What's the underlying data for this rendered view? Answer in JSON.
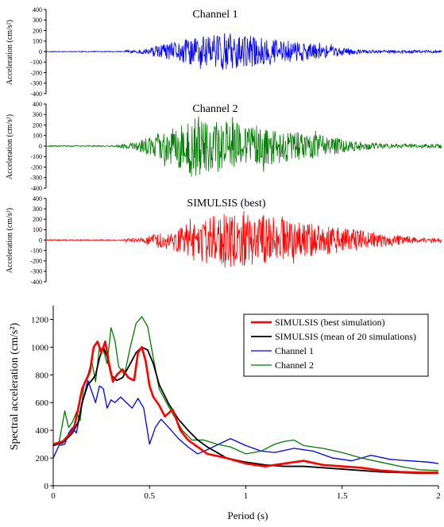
{
  "colors": {
    "channel1": "#0000ee",
    "channel2": "#007a00",
    "simulsis": "#ff0000",
    "mean": "#000000",
    "axis": "#000000"
  },
  "chart_data": [
    {
      "type": "line",
      "title": "Channel 1",
      "ylabel": "Acceleration (cm/s²)",
      "ylim": [
        -400,
        400
      ],
      "yticks": [
        "400",
        "300",
        "200",
        "100",
        "0",
        "-100",
        "-200",
        "-300",
        "-400"
      ],
      "series": [
        {
          "values": [],
          "envelope_peak": 200,
          "color_key": "channel1"
        }
      ]
    },
    {
      "type": "line",
      "title": "Channel 2",
      "ylabel": "Acceleration (cm/s²)",
      "ylim": [
        -400,
        400
      ],
      "yticks": [
        "400",
        "300",
        "200",
        "100",
        "0",
        "-100",
        "-200",
        "-300",
        "-400"
      ],
      "series": [
        {
          "values": [],
          "envelope_peak": 290,
          "color_key": "channel2"
        }
      ]
    },
    {
      "type": "line",
      "title": "SIMULSIS (best)",
      "ylabel": "Acceleration (cm/s²)",
      "ylim": [
        -400,
        400
      ],
      "yticks": [
        "400",
        "300",
        "200",
        "100",
        "0",
        "-100",
        "-200",
        "-300",
        "-400"
      ],
      "series": [
        {
          "values": [],
          "envelope_peak": 280,
          "color_key": "simulsis"
        }
      ]
    },
    {
      "type": "line",
      "xlabel": "Period (s)",
      "ylabel": "Spectral acceleration  (cm/s²)",
      "xlim": [
        0,
        2
      ],
      "ylim": [
        0,
        1300
      ],
      "xticks": [
        "0",
        "0.5",
        "1",
        "1.5",
        "2"
      ],
      "yticks": [
        "0",
        "200",
        "400",
        "600",
        "800",
        "1000",
        "1200"
      ],
      "legend_position": "top-right",
      "series": [
        {
          "name": "SIMULSIS (best simulation)",
          "color_key": "simulsis",
          "width": 2.6,
          "x": [
            0.0,
            0.05,
            0.09,
            0.11,
            0.13,
            0.15,
            0.17,
            0.19,
            0.21,
            0.23,
            0.25,
            0.27,
            0.29,
            0.31,
            0.33,
            0.36,
            0.39,
            0.42,
            0.44,
            0.46,
            0.48,
            0.5,
            0.52,
            0.55,
            0.58,
            0.62,
            0.66,
            0.7,
            0.75,
            0.8,
            0.9,
            1.0,
            1.05,
            1.1,
            1.2,
            1.3,
            1.4,
            1.5,
            1.6,
            1.7,
            1.8,
            1.9,
            2.0
          ],
          "y": [
            300,
            320,
            380,
            430,
            560,
            700,
            760,
            820,
            1000,
            1040,
            960,
            1040,
            880,
            750,
            800,
            840,
            780,
            760,
            960,
            1000,
            900,
            720,
            640,
            580,
            500,
            550,
            400,
            330,
            280,
            230,
            200,
            160,
            150,
            140,
            160,
            180,
            150,
            140,
            130,
            110,
            100,
            95,
            95
          ]
        },
        {
          "name": "SIMULSIS (mean of 20 simulations)",
          "color_key": "mean",
          "width": 1.8,
          "x": [
            0.0,
            0.05,
            0.1,
            0.13,
            0.15,
            0.18,
            0.2,
            0.22,
            0.24,
            0.26,
            0.28,
            0.3,
            0.33,
            0.36,
            0.4,
            0.43,
            0.46,
            0.49,
            0.52,
            0.55,
            0.6,
            0.65,
            0.7,
            0.75,
            0.8,
            0.9,
            1.0,
            1.1,
            1.2,
            1.3,
            1.4,
            1.5,
            1.6,
            1.7,
            1.8,
            1.9,
            2.0
          ],
          "y": [
            290,
            310,
            380,
            460,
            600,
            730,
            760,
            800,
            920,
            1000,
            930,
            800,
            760,
            780,
            880,
            960,
            1000,
            980,
            880,
            730,
            590,
            480,
            400,
            330,
            280,
            200,
            170,
            150,
            140,
            140,
            130,
            120,
            110,
            100,
            95,
            90,
            90
          ]
        },
        {
          "name": "Channel 1",
          "color_key": "channel1",
          "width": 1.3,
          "x": [
            0.0,
            0.03,
            0.06,
            0.08,
            0.1,
            0.12,
            0.14,
            0.16,
            0.18,
            0.2,
            0.22,
            0.24,
            0.26,
            0.28,
            0.3,
            0.32,
            0.35,
            0.38,
            0.41,
            0.44,
            0.47,
            0.5,
            0.53,
            0.56,
            0.6,
            0.65,
            0.7,
            0.75,
            0.8,
            0.86,
            0.92,
            1.0,
            1.08,
            1.15,
            1.25,
            1.35,
            1.45,
            1.55,
            1.65,
            1.75,
            1.85,
            1.95,
            2.0
          ],
          "y": [
            200,
            290,
            300,
            380,
            420,
            380,
            520,
            650,
            760,
            680,
            600,
            720,
            700,
            560,
            620,
            600,
            640,
            600,
            560,
            630,
            560,
            300,
            420,
            480,
            420,
            340,
            280,
            230,
            260,
            300,
            340,
            290,
            250,
            240,
            270,
            250,
            200,
            180,
            220,
            190,
            180,
            170,
            160
          ]
        },
        {
          "name": "Channel 2",
          "color_key": "channel2",
          "width": 1.3,
          "x": [
            0.0,
            0.03,
            0.06,
            0.08,
            0.1,
            0.12,
            0.14,
            0.16,
            0.18,
            0.2,
            0.22,
            0.24,
            0.26,
            0.28,
            0.3,
            0.32,
            0.34,
            0.37,
            0.4,
            0.43,
            0.46,
            0.49,
            0.52,
            0.55,
            0.58,
            0.62,
            0.67,
            0.72,
            0.78,
            0.85,
            0.92,
            1.0,
            1.08,
            1.15,
            1.2,
            1.25,
            1.3,
            1.4,
            1.5,
            1.6,
            1.7,
            1.8,
            1.9,
            2.0
          ],
          "y": [
            300,
            310,
            540,
            420,
            460,
            530,
            470,
            740,
            800,
            900,
            750,
            1000,
            980,
            880,
            1140,
            1050,
            860,
            800,
            1000,
            1170,
            1220,
            1150,
            920,
            700,
            620,
            520,
            400,
            330,
            330,
            300,
            280,
            230,
            250,
            300,
            320,
            330,
            290,
            270,
            240,
            200,
            170,
            140,
            115,
            110
          ]
        }
      ]
    }
  ]
}
